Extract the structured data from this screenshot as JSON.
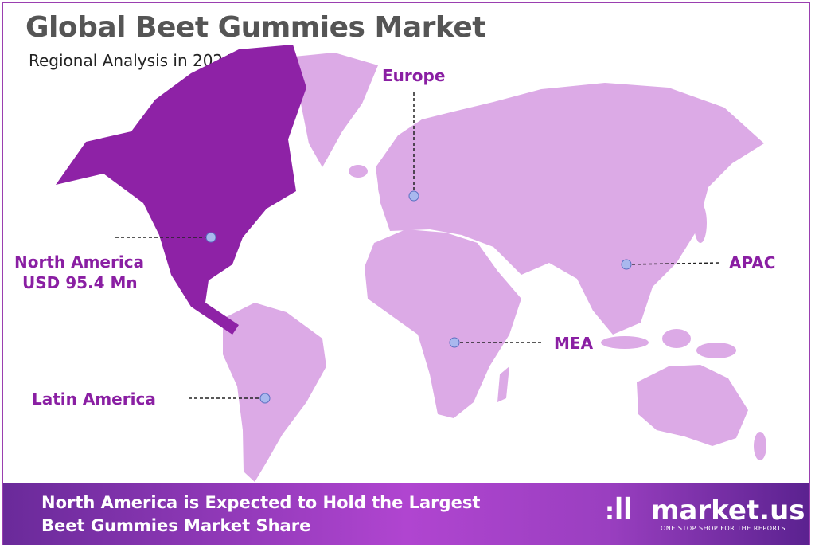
{
  "header": {
    "title": "Global Beet Gummies Market",
    "subtitle": "Regional Analysis in 2024"
  },
  "colors": {
    "highlight_region": "#8e22a6",
    "other_regions": "#dcaae6",
    "label": "#8a1fa3",
    "marker": "#a9b8ee"
  },
  "regions": [
    {
      "name": "Europe",
      "highlighted": false
    },
    {
      "name": "North America",
      "value": "USD 95.4 Mn",
      "highlighted": true
    },
    {
      "name": "APAC",
      "highlighted": false
    },
    {
      "name": "MEA",
      "highlighted": false
    },
    {
      "name": "Latin America",
      "highlighted": false
    }
  ],
  "footer": {
    "line1": "North America is Expected to Hold the Largest",
    "line2": "Beet Gummies Market Share"
  },
  "brand": {
    "name": "market.us",
    "tagline": "ONE STOP SHOP FOR THE REPORTS"
  }
}
